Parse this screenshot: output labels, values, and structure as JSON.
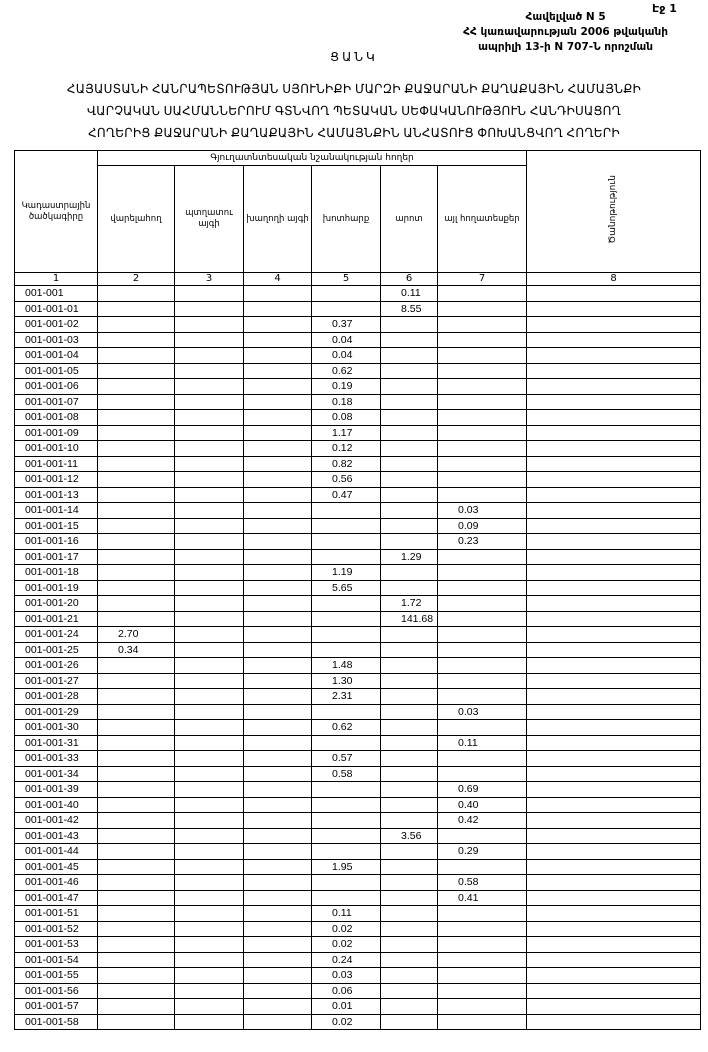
{
  "header": {
    "page": "Էջ 1",
    "annex_lines": [
      "Հավելված N 5",
      "ՀՀ կառավարության 2006 թվականի",
      "ապրիլի 13-ի N 707-Ն որոշման"
    ],
    "list_title": "ՑԱՆԿ",
    "title_lines": [
      "ՀԱՅԱՍՏԱՆԻ ՀԱՆՐԱՊԵՏՈՒԹՅԱՆ ՍՅՈՒՆԻՔԻ ՄԱՐԶԻ ՔԱՋԱՐԱՆԻ ՔԱՂԱՔԱՅԻՆ ՀԱՄԱՅՆՔԻ",
      "ՎԱՐՉԱԿԱՆ ՍԱՀՄԱՆՆԵՐՈՒՄ ԳՏՆՎՈՂ ՊԵՏԱԿԱՆ ՍԵՓԱԿԱՆՈՒԹՅՈՒՆ ՀԱՆԴԻՍԱՑՈՂ",
      "ՀՈՂԵՐԻՑ ՔԱՋԱՐԱՆԻ ՔԱՂԱՔԱՅԻՆ ՀԱՄԱՅՆՔԻՆ ԱՆՀԱՏՈՒՑ ՓՈԽԱՆՑՎՈՂ ՀՈՂԵՐԻ"
    ]
  },
  "table": {
    "group_header": "Գյուղատնտեսական նշանակության հողեր",
    "columns": [
      "Կադաստրային ծածկագիրը",
      "վարելահող",
      "պտղատու այգի",
      "խաղողի այգի",
      "խոտհարք",
      "արոտ",
      "այլ հողատեսքեր",
      "Ծանոթություն"
    ],
    "column_numbers": [
      "1",
      "2",
      "3",
      "4",
      "5",
      "6",
      "7",
      "8"
    ],
    "rows": [
      {
        "code": "001-001",
        "v": [
          "",
          "",
          "",
          "",
          "0.11",
          ""
        ]
      },
      {
        "code": "001-001-01",
        "v": [
          "",
          "",
          "",
          "",
          "8.55",
          ""
        ]
      },
      {
        "code": "001-001-02",
        "v": [
          "",
          "",
          "",
          "0.37",
          "",
          ""
        ]
      },
      {
        "code": "001-001-03",
        "v": [
          "",
          "",
          "",
          "0.04",
          "",
          ""
        ]
      },
      {
        "code": "001-001-04",
        "v": [
          "",
          "",
          "",
          "0.04",
          "",
          ""
        ]
      },
      {
        "code": "001-001-05",
        "v": [
          "",
          "",
          "",
          "0.62",
          "",
          ""
        ]
      },
      {
        "code": "001-001-06",
        "v": [
          "",
          "",
          "",
          "0.19",
          "",
          ""
        ]
      },
      {
        "code": "001-001-07",
        "v": [
          "",
          "",
          "",
          "0.18",
          "",
          ""
        ]
      },
      {
        "code": "001-001-08",
        "v": [
          "",
          "",
          "",
          "0.08",
          "",
          ""
        ]
      },
      {
        "code": "001-001-09",
        "v": [
          "",
          "",
          "",
          "1.17",
          "",
          ""
        ]
      },
      {
        "code": "001-001-10",
        "v": [
          "",
          "",
          "",
          "0.12",
          "",
          ""
        ]
      },
      {
        "code": "001-001-11",
        "v": [
          "",
          "",
          "",
          "0.82",
          "",
          ""
        ]
      },
      {
        "code": "001-001-12",
        "v": [
          "",
          "",
          "",
          "0.56",
          "",
          ""
        ]
      },
      {
        "code": "001-001-13",
        "v": [
          "",
          "",
          "",
          "0.47",
          "",
          ""
        ]
      },
      {
        "code": "001-001-14",
        "v": [
          "",
          "",
          "",
          "",
          "",
          "0.03"
        ]
      },
      {
        "code": "001-001-15",
        "v": [
          "",
          "",
          "",
          "",
          "",
          "0.09"
        ]
      },
      {
        "code": "001-001-16",
        "v": [
          "",
          "",
          "",
          "",
          "",
          "0.23"
        ]
      },
      {
        "code": "001-001-17",
        "v": [
          "",
          "",
          "",
          "",
          "1.29",
          ""
        ]
      },
      {
        "code": "001-001-18",
        "v": [
          "",
          "",
          "",
          "1.19",
          "",
          ""
        ]
      },
      {
        "code": "001-001-19",
        "v": [
          "",
          "",
          "",
          "5.65",
          "",
          ""
        ]
      },
      {
        "code": "001-001-20",
        "v": [
          "",
          "",
          "",
          "",
          "1.72",
          ""
        ]
      },
      {
        "code": "001-001-21",
        "v": [
          "",
          "",
          "",
          "",
          "141.68",
          ""
        ]
      },
      {
        "code": "001-001-24",
        "v": [
          "2.70",
          "",
          "",
          "",
          "",
          ""
        ]
      },
      {
        "code": "001-001-25",
        "v": [
          "0.34",
          "",
          "",
          "",
          "",
          ""
        ]
      },
      {
        "code": "001-001-26",
        "v": [
          "",
          "",
          "",
          "1.48",
          "",
          ""
        ]
      },
      {
        "code": "001-001-27",
        "v": [
          "",
          "",
          "",
          "1.30",
          "",
          ""
        ]
      },
      {
        "code": "001-001-28",
        "v": [
          "",
          "",
          "",
          "2.31",
          "",
          ""
        ]
      },
      {
        "code": "001-001-29",
        "v": [
          "",
          "",
          "",
          "",
          "",
          "0.03"
        ]
      },
      {
        "code": "001-001-30",
        "v": [
          "",
          "",
          "",
          "0.62",
          "",
          ""
        ]
      },
      {
        "code": "001-001-31",
        "v": [
          "",
          "",
          "",
          "",
          "",
          "0.11"
        ]
      },
      {
        "code": "001-001-33",
        "v": [
          "",
          "",
          "",
          "0.57",
          "",
          ""
        ]
      },
      {
        "code": "001-001-34",
        "v": [
          "",
          "",
          "",
          "0.58",
          "",
          ""
        ]
      },
      {
        "code": "001-001-39",
        "v": [
          "",
          "",
          "",
          "",
          "",
          "0.69"
        ]
      },
      {
        "code": "001-001-40",
        "v": [
          "",
          "",
          "",
          "",
          "",
          "0.40"
        ]
      },
      {
        "code": "001-001-42",
        "v": [
          "",
          "",
          "",
          "",
          "",
          "0.42"
        ]
      },
      {
        "code": "001-001-43",
        "v": [
          "",
          "",
          "",
          "",
          "3.56",
          ""
        ]
      },
      {
        "code": "001-001-44",
        "v": [
          "",
          "",
          "",
          "",
          "",
          "0.29"
        ]
      },
      {
        "code": "001-001-45",
        "v": [
          "",
          "",
          "",
          "1.95",
          "",
          ""
        ]
      },
      {
        "code": "001-001-46",
        "v": [
          "",
          "",
          "",
          "",
          "",
          "0.58"
        ]
      },
      {
        "code": "001-001-47",
        "v": [
          "",
          "",
          "",
          "",
          "",
          "0.41"
        ]
      },
      {
        "code": "001-001-51",
        "v": [
          "",
          "",
          "",
          "0.11",
          "",
          ""
        ]
      },
      {
        "code": "001-001-52",
        "v": [
          "",
          "",
          "",
          "0.02",
          "",
          ""
        ]
      },
      {
        "code": "001-001-53",
        "v": [
          "",
          "",
          "",
          "0.02",
          "",
          ""
        ]
      },
      {
        "code": "001-001-54",
        "v": [
          "",
          "",
          "",
          "0.24",
          "",
          ""
        ]
      },
      {
        "code": "001-001-55",
        "v": [
          "",
          "",
          "",
          "0.03",
          "",
          ""
        ]
      },
      {
        "code": "001-001-56",
        "v": [
          "",
          "",
          "",
          "0.06",
          "",
          ""
        ]
      },
      {
        "code": "001-001-57",
        "v": [
          "",
          "",
          "",
          "0.01",
          "",
          ""
        ]
      },
      {
        "code": "001-001-58",
        "v": [
          "",
          "",
          "",
          "0.02",
          "",
          ""
        ]
      }
    ]
  }
}
